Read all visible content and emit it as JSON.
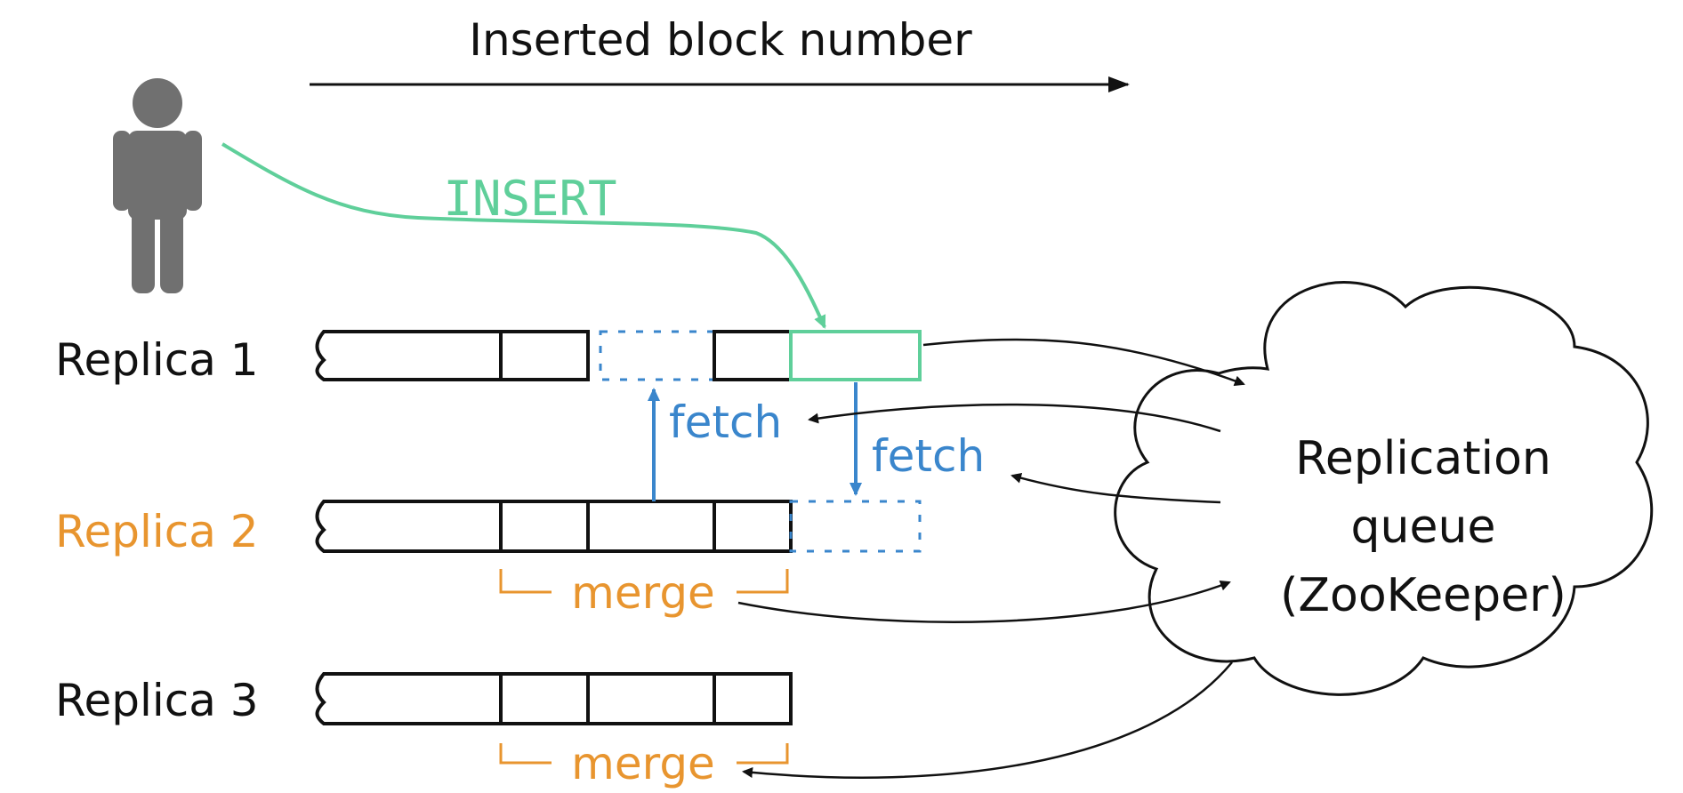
{
  "axis": {
    "label": "Inserted block number"
  },
  "insert_label": "INSERT",
  "replicas": [
    {
      "label": "Replica 1"
    },
    {
      "label": "Replica 2"
    },
    {
      "label": "Replica 3"
    }
  ],
  "fetch_labels": [
    "fetch",
    "fetch"
  ],
  "merge_labels": [
    "merge",
    "merge"
  ],
  "zookeeper": {
    "line1": "Replication",
    "line2": "queue",
    "line3": "(ZooKeeper)"
  },
  "colors": {
    "ink": "#111111",
    "insert": "#5fcf9a",
    "fetch": "#3a86cc",
    "replica2": "#e8952f",
    "merge": "#e8952f",
    "person": "#707070"
  }
}
